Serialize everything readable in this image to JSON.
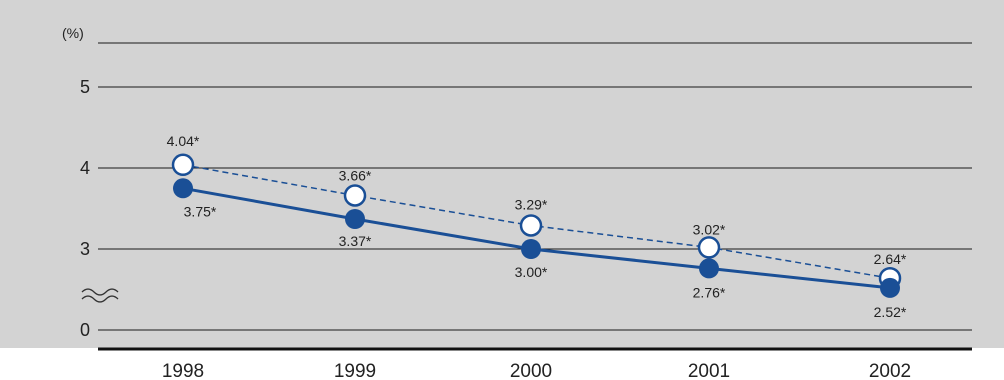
{
  "chart_data": {
    "type": "line",
    "unit_label": "(%)",
    "y_tick_labels": [
      "0",
      "3",
      "4",
      "5"
    ],
    "axis_break": true,
    "categories": [
      "1998",
      "1999",
      "2000",
      "2001",
      "2002"
    ],
    "series": [
      {
        "style": "dashed line, open circle markers",
        "color": "#1a4f96",
        "values": [
          4.04,
          3.66,
          3.29,
          3.02,
          2.64
        ],
        "labels": [
          "4.04*",
          "3.66*",
          "3.29*",
          "3.02*",
          "2.64*"
        ]
      },
      {
        "style": "solid line, filled circle markers",
        "color": "#1a4f96",
        "values": [
          3.75,
          3.37,
          3.0,
          2.76,
          2.52
        ],
        "labels": [
          "3.75*",
          "3.37*",
          "3.00*",
          "2.76*",
          "2.52*"
        ]
      }
    ],
    "background": "#d3d3d3",
    "grid": true
  }
}
